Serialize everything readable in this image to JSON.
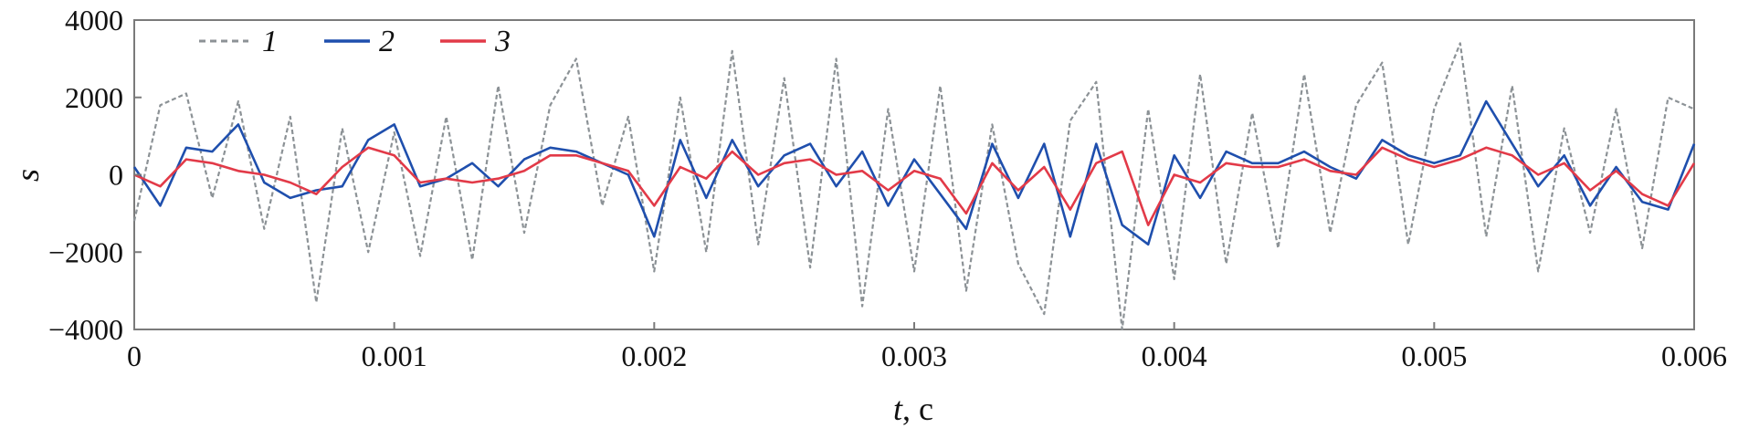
{
  "chart_data": {
    "type": "line",
    "title": "",
    "xlabel_var": "t",
    "xlabel_unit": ", c",
    "ylabel": "s",
    "xlim": [
      0,
      0.006
    ],
    "ylim": [
      -4000,
      4000
    ],
    "x_ticks": [
      0,
      0.001,
      0.002,
      0.003,
      0.004,
      0.005,
      0.006
    ],
    "x_tick_labels": [
      "0",
      "0.001",
      "0.002",
      "0.003",
      "0.004",
      "0.005",
      "0.006"
    ],
    "y_ticks": [
      4000,
      2000,
      0,
      -2000,
      -4000
    ],
    "y_tick_labels": [
      "4000",
      "2000",
      "0",
      "−2000",
      "−4000"
    ],
    "grid": false,
    "legend_position": "top-left",
    "series": [
      {
        "name": "1",
        "color": "#8c9296",
        "style": "dashed",
        "x": [
          0,
          0.0001,
          0.0002,
          0.0003,
          0.0004,
          0.0005,
          0.0006,
          0.0007,
          0.0008,
          0.0009,
          0.001,
          0.0011,
          0.0012,
          0.0013,
          0.0014,
          0.0015,
          0.0016,
          0.0017,
          0.0018,
          0.0019,
          0.002,
          0.0021,
          0.0022,
          0.0023,
          0.0024,
          0.0025,
          0.0026,
          0.0027,
          0.0028,
          0.0029,
          0.003,
          0.0031,
          0.0032,
          0.0033,
          0.0034,
          0.0035,
          0.0036,
          0.0037,
          0.0038,
          0.0039,
          0.004,
          0.0041,
          0.0042,
          0.0043,
          0.0044,
          0.0045,
          0.0046,
          0.0047,
          0.0048,
          0.0049,
          0.005,
          0.0051,
          0.0052,
          0.0053,
          0.0054,
          0.0055,
          0.0056,
          0.0057,
          0.0058,
          0.0059,
          0.006
        ],
        "y": [
          -1200,
          1800,
          2100,
          -600,
          1900,
          -1400,
          1500,
          -3300,
          1200,
          -2000,
          1100,
          -2100,
          1500,
          -2200,
          2300,
          -1500,
          1800,
          3000,
          -800,
          1500,
          -2500,
          2000,
          -2000,
          3200,
          -1800,
          2500,
          -2400,
          3000,
          -3400,
          1700,
          -2500,
          2300,
          -3000,
          1300,
          -2300,
          -3600,
          1400,
          2400,
          -4000,
          1700,
          -2700,
          2600,
          -2300,
          1600,
          -1900,
          2600,
          -1500,
          1800,
          2900,
          -1800,
          1700,
          3400,
          -1600,
          2300,
          -2500,
          1200,
          -1500,
          1700,
          -1900,
          2000,
          1700
        ]
      },
      {
        "name": "2",
        "color": "#1f4fad",
        "style": "solid",
        "x": [
          0,
          0.0001,
          0.0002,
          0.0003,
          0.0004,
          0.0005,
          0.0006,
          0.0007,
          0.0008,
          0.0009,
          0.001,
          0.0011,
          0.0012,
          0.0013,
          0.0014,
          0.0015,
          0.0016,
          0.0017,
          0.0018,
          0.0019,
          0.002,
          0.0021,
          0.0022,
          0.0023,
          0.0024,
          0.0025,
          0.0026,
          0.0027,
          0.0028,
          0.0029,
          0.003,
          0.0031,
          0.0032,
          0.0033,
          0.0034,
          0.0035,
          0.0036,
          0.0037,
          0.0038,
          0.0039,
          0.004,
          0.0041,
          0.0042,
          0.0043,
          0.0044,
          0.0045,
          0.0046,
          0.0047,
          0.0048,
          0.0049,
          0.005,
          0.0051,
          0.0052,
          0.0053,
          0.0054,
          0.0055,
          0.0056,
          0.0057,
          0.0058,
          0.0059,
          0.006
        ],
        "y": [
          200,
          -800,
          700,
          600,
          1300,
          -200,
          -600,
          -400,
          -300,
          900,
          1300,
          -300,
          -100,
          300,
          -300,
          400,
          700,
          600,
          300,
          0,
          -1600,
          900,
          -600,
          900,
          -300,
          500,
          800,
          -300,
          600,
          -800,
          400,
          -500,
          -1400,
          800,
          -600,
          800,
          -1600,
          800,
          -1300,
          -1800,
          500,
          -600,
          600,
          300,
          300,
          600,
          200,
          -100,
          900,
          500,
          300,
          500,
          1900,
          800,
          -300,
          500,
          -800,
          200,
          -700,
          -900,
          800
        ]
      },
      {
        "name": "3",
        "color": "#e23a48",
        "style": "solid",
        "x": [
          0,
          0.0001,
          0.0002,
          0.0003,
          0.0004,
          0.0005,
          0.0006,
          0.0007,
          0.0008,
          0.0009,
          0.001,
          0.0011,
          0.0012,
          0.0013,
          0.0014,
          0.0015,
          0.0016,
          0.0017,
          0.0018,
          0.0019,
          0.002,
          0.0021,
          0.0022,
          0.0023,
          0.0024,
          0.0025,
          0.0026,
          0.0027,
          0.0028,
          0.0029,
          0.003,
          0.0031,
          0.0032,
          0.0033,
          0.0034,
          0.0035,
          0.0036,
          0.0037,
          0.0038,
          0.0039,
          0.004,
          0.0041,
          0.0042,
          0.0043,
          0.0044,
          0.0045,
          0.0046,
          0.0047,
          0.0048,
          0.0049,
          0.005,
          0.0051,
          0.0052,
          0.0053,
          0.0054,
          0.0055,
          0.0056,
          0.0057,
          0.0058,
          0.0059,
          0.006
        ],
        "y": [
          0,
          -300,
          400,
          300,
          100,
          0,
          -200,
          -500,
          200,
          700,
          500,
          -200,
          -100,
          -200,
          -100,
          100,
          500,
          500,
          300,
          100,
          -800,
          200,
          -100,
          600,
          0,
          300,
          400,
          0,
          100,
          -400,
          100,
          -100,
          -1000,
          300,
          -400,
          200,
          -900,
          300,
          600,
          -1300,
          0,
          -200,
          300,
          200,
          200,
          400,
          100,
          0,
          700,
          400,
          200,
          400,
          700,
          500,
          0,
          300,
          -400,
          100,
          -500,
          -800,
          300
        ]
      }
    ]
  }
}
